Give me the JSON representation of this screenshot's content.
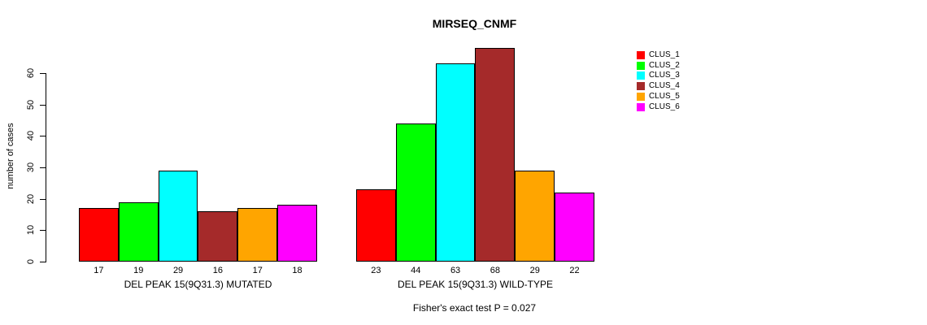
{
  "chart_data": {
    "type": "bar",
    "title": "MIRSEQ_CNMF",
    "ylabel": "number of cases",
    "ylim": [
      0,
      70
    ],
    "yticks": [
      0,
      10,
      20,
      30,
      40,
      50,
      60
    ],
    "grid": false,
    "legend_position": "right",
    "categories": [
      "DEL PEAK 15(9Q31.3) MUTATED",
      "DEL PEAK 15(9Q31.3) WILD-TYPE"
    ],
    "series": [
      {
        "name": "CLUS_1",
        "color": "#FF0000",
        "values": [
          17,
          23
        ]
      },
      {
        "name": "CLUS_2",
        "color": "#00FF00",
        "values": [
          19,
          44
        ]
      },
      {
        "name": "CLUS_3",
        "color": "#00FFFF",
        "values": [
          29,
          63
        ]
      },
      {
        "name": "CLUS_4",
        "color": "#A52A2A",
        "values": [
          16,
          68
        ]
      },
      {
        "name": "CLUS_5",
        "color": "#FFA500",
        "values": [
          17,
          29
        ]
      },
      {
        "name": "CLUS_6",
        "color": "#FF00FF",
        "values": [
          18,
          22
        ]
      }
    ],
    "bar_value_labels": [
      [
        17,
        19,
        29,
        16,
        17,
        18
      ],
      [
        23,
        44,
        63,
        68,
        29,
        22
      ]
    ],
    "annotation": "Fisher's exact test P = 0.027"
  },
  "colors": {
    "axis": "#000000",
    "background": "#FFFFFF",
    "bar_border": "#000000"
  }
}
